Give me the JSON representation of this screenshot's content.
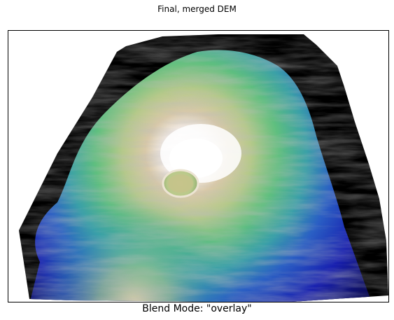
{
  "figure": {
    "title": "Final, merged DEM",
    "xlabel": "Blend Mode: \"overlay\""
  },
  "image": {
    "subject": "shaded-relief-dem",
    "colormap": "gist_earth",
    "nodata_color": "#000000",
    "blend_mode": "overlay"
  }
}
